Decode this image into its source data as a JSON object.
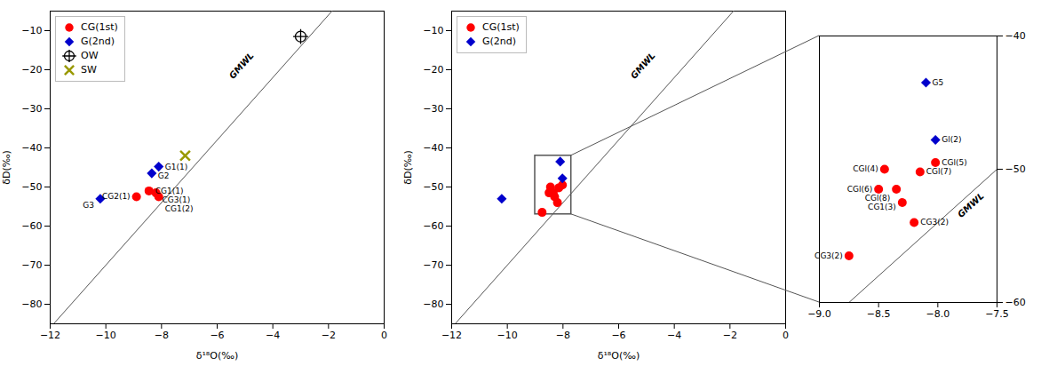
{
  "chart_data": [
    {
      "type": "scatter",
      "x_label": "δ¹⁸O(‰)",
      "y_label": "δD(‰)",
      "xlim": [
        -12,
        0
      ],
      "ylim": [
        -85,
        -5
      ],
      "xticks": [
        -12,
        -10,
        -8,
        -6,
        -4,
        -2,
        0
      ],
      "yticks": [
        -80,
        -70,
        -60,
        -50,
        -40,
        -30,
        -20,
        -10
      ],
      "grid": false,
      "legend": "upper left",
      "series": [
        {
          "name": "CG(1st)",
          "color": "red",
          "marker": "circle",
          "x": [
            -8.9,
            -8.45,
            -8.2,
            -8.1
          ],
          "values": [
            -52.5,
            -51.0,
            -51.5,
            -52.5
          ],
          "labels": [
            "CG2(1)",
            "CG1(1)",
            "CG3(1)",
            "CG1(2)"
          ]
        },
        {
          "name": "G(2nd)",
          "color": "#0000cc",
          "marker": "diamond",
          "x": [
            -8.35,
            -8.1,
            -10.2
          ],
          "values": [
            -46.5,
            -44.8,
            -53.0
          ],
          "labels": [
            "G2",
            "G1(1)",
            "G3"
          ]
        },
        {
          "name": "OW",
          "color": "black",
          "marker": "circle_plus",
          "x": [
            -3.0
          ],
          "values": [
            -11.5
          ]
        },
        {
          "name": "SW",
          "color": "#999900",
          "marker": "x",
          "x": [
            -7.15
          ],
          "values": [
            -42.0
          ]
        }
      ],
      "lines": [
        {
          "color": "#555555",
          "x": [
            -12.0,
            0.0
          ],
          "values": [
            -86.0,
            10.0
          ]
        }
      ],
      "annotations": [
        {
          "text": "GMWL",
          "x": -5.5,
          "y": -22
        }
      ]
    },
    {
      "type": "scatter",
      "x_label": "δ¹⁸O(‰)",
      "y_label": "δD(‰)",
      "xlim": [
        -12,
        0
      ],
      "ylim": [
        -85,
        -5
      ],
      "xticks": [
        -12,
        -10,
        -8,
        -6,
        -4,
        -2,
        0
      ],
      "yticks": [
        -80,
        -70,
        -60,
        -50,
        -40,
        -30,
        -20,
        -10
      ],
      "grid": false,
      "legend": "upper left",
      "series": [
        {
          "name": "CG(1st)",
          "color": "red",
          "marker": "circle",
          "x": [
            -8.75,
            -8.45,
            -8.5,
            -8.35,
            -8.3,
            -8.2,
            -8.02,
            -8.15
          ],
          "values": [
            -56.5,
            -50.0,
            -51.5,
            -51.5,
            -52.5,
            -54.0,
            -49.5,
            -50.2
          ]
        },
        {
          "name": "G(2nd)",
          "color": "#0000cc",
          "marker": "diamond",
          "x": [
            -8.1,
            -8.02,
            -10.2
          ],
          "values": [
            -43.5,
            -47.8,
            -53.0
          ]
        }
      ],
      "lines": [
        {
          "color": "#555555",
          "x": [
            -12.0,
            0.0
          ],
          "values": [
            -86.0,
            10.0
          ]
        }
      ],
      "annotations": [
        {
          "text": "GMWL",
          "x": -5.5,
          "y": -22
        }
      ],
      "rectangle": {
        "x": -9.0,
        "y": -57.0,
        "width": 1.3,
        "height": 15.0,
        "color": "#555555"
      }
    },
    {
      "type": "scatter",
      "xlim": [
        -9.0,
        -7.5
      ],
      "ylim": [
        -60,
        -40
      ],
      "xticks": [
        {
          "value": -9,
          "label": "−9.0"
        },
        -8.5,
        {
          "value": -8,
          "label": "−8.0"
        },
        -7.5
      ],
      "yticks": [
        -60,
        -50,
        -40
      ],
      "grid": false,
      "series": [
        {
          "color": "red",
          "marker": "circle",
          "x": [
            -8.75,
            -8.45,
            -8.5,
            -8.35,
            -8.3,
            -8.2,
            -8.02,
            -8.15
          ],
          "values": [
            -56.5,
            -50.0,
            -51.5,
            -51.5,
            -52.5,
            -54.0,
            -49.5,
            -50.2
          ],
          "labels": [
            "CG3(2)",
            "CGl(4)",
            "CGl(6)",
            "CGl(8)",
            "CG1(3)",
            "CG3(2)",
            "CGl(5)",
            "CGl(7)"
          ]
        },
        {
          "color": "#0000cc",
          "marker": "diamond",
          "x": [
            -8.1,
            -8.02
          ],
          "values": [
            -43.5,
            -47.8
          ],
          "labels": [
            "G5",
            "Gl(2)"
          ]
        }
      ],
      "lines": [
        {
          "color": "#555555",
          "x": [
            -9.5,
            -7.0
          ],
          "values": [
            -66.0,
            -46.0
          ]
        }
      ],
      "annotations": [
        {
          "text": "GMWL",
          "x": -7.82,
          "y": -53.5
        }
      ]
    }
  ]
}
